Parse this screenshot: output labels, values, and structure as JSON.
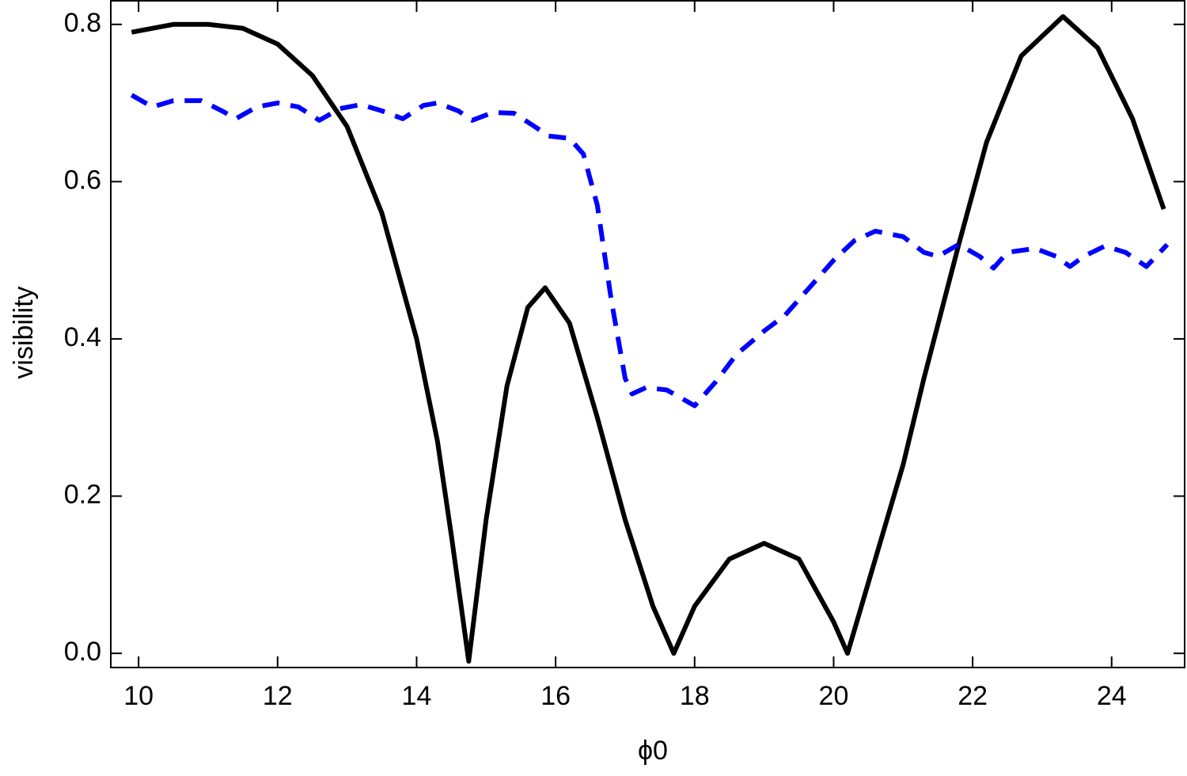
{
  "chart_data": {
    "type": "line",
    "xlabel": "ϕ0",
    "ylabel": "visibility",
    "xlim": [
      9.6,
      25.05
    ],
    "ylim": [
      -0.018,
      0.83
    ],
    "xticks": [
      10,
      12,
      14,
      16,
      18,
      20,
      22,
      24
    ],
    "yticks": [
      {
        "value": 0,
        "label": "0.0"
      },
      0.2,
      0.4,
      0.6,
      0.8
    ],
    "series": [
      {
        "color": "#000000",
        "style": "solid",
        "x": [
          9.9,
          10.5,
          11,
          11.5,
          12,
          12.5,
          13,
          13.5,
          14,
          14.3,
          14.5,
          14.75,
          15,
          15.3,
          15.6,
          15.85,
          16.2,
          16.6,
          17,
          17.4,
          17.7,
          18,
          18.5,
          19,
          19.5,
          20,
          20.2,
          20.5,
          21,
          21.3,
          21.8,
          22.2,
          22.7,
          23.3,
          23.8,
          24.3,
          24.75
        ],
        "values": [
          0.79,
          0.8,
          0.8,
          0.795,
          0.775,
          0.735,
          0.67,
          0.56,
          0.4,
          0.27,
          0.15,
          -0.01,
          0.17,
          0.34,
          0.44,
          0.465,
          0.42,
          0.3,
          0.17,
          0.06,
          0.0,
          0.06,
          0.12,
          0.14,
          0.12,
          0.04,
          0.0,
          0.09,
          0.24,
          0.35,
          0.52,
          0.65,
          0.76,
          0.81,
          0.77,
          0.68,
          0.565
        ]
      },
      {
        "color": "#0000ff",
        "style": "dashed",
        "x": [
          9.9,
          10.2,
          10.5,
          10.9,
          11.2,
          11.4,
          11.7,
          12,
          12.3,
          12.6,
          12.9,
          13.2,
          13.5,
          13.8,
          14.1,
          14.3,
          14.6,
          14.8,
          15.1,
          15.4,
          15.7,
          15.9,
          16.2,
          16.4,
          16.6,
          16.8,
          17,
          17.1,
          17.3,
          17.6,
          17.8,
          18,
          18.3,
          18.6,
          19,
          19.3,
          19.7,
          20,
          20.3,
          20.6,
          21,
          21.3,
          21.5,
          21.8,
          22.1,
          22.3,
          22.5,
          22.9,
          23.2,
          23.4,
          23.6,
          23.9,
          24.2,
          24.5,
          24.8
        ],
        "values": [
          0.71,
          0.695,
          0.703,
          0.703,
          0.69,
          0.68,
          0.695,
          0.7,
          0.695,
          0.678,
          0.693,
          0.698,
          0.69,
          0.68,
          0.697,
          0.7,
          0.69,
          0.678,
          0.688,
          0.687,
          0.67,
          0.658,
          0.655,
          0.635,
          0.57,
          0.45,
          0.35,
          0.33,
          0.338,
          0.335,
          0.325,
          0.315,
          0.345,
          0.38,
          0.41,
          0.43,
          0.47,
          0.5,
          0.525,
          0.537,
          0.53,
          0.51,
          0.505,
          0.52,
          0.505,
          0.49,
          0.51,
          0.515,
          0.505,
          0.492,
          0.505,
          0.518,
          0.51,
          0.492,
          0.52
        ]
      }
    ]
  }
}
